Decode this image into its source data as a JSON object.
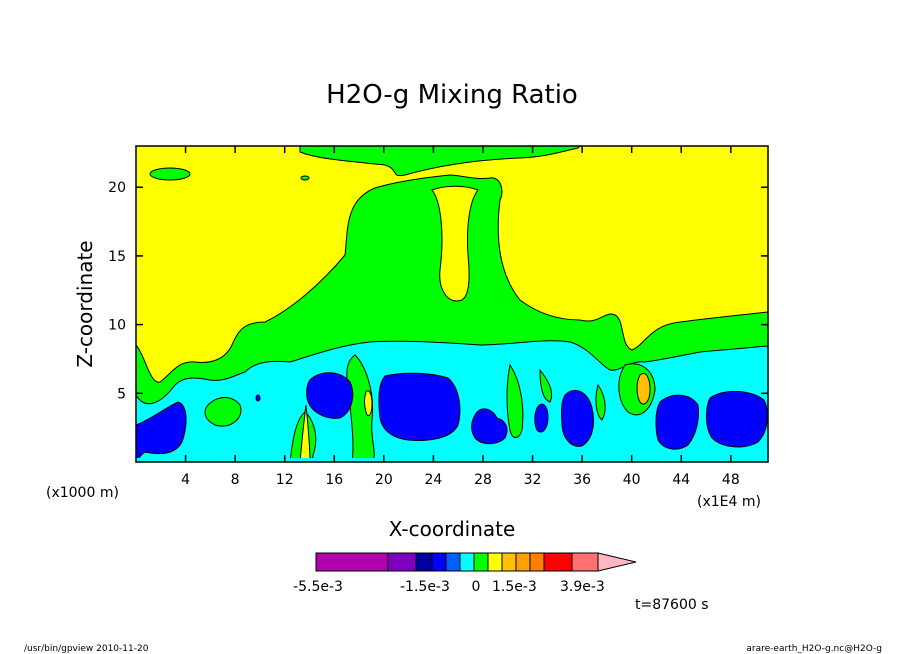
{
  "chart_data": {
    "type": "heatmap",
    "subtype": "filled-contour",
    "title": "H2O-g Mixing Ratio",
    "xlabel": "X-coordinate",
    "ylabel": "Z-coordinate",
    "x_unit": "(x1000 m)",
    "x_multiplier_label": "(x1E4 m)",
    "xlim": [
      0,
      51
    ],
    "ylim": [
      0,
      23
    ],
    "x_ticks": [
      4,
      8,
      12,
      16,
      20,
      24,
      28,
      32,
      36,
      40,
      44,
      48
    ],
    "y_ticks": [
      5,
      10,
      15,
      20
    ],
    "grid": false,
    "colorbar": {
      "labels": [
        "-5.5e-3",
        "-1.5e-3",
        "0",
        "1.5e-3",
        "3.9e-3"
      ],
      "colors": [
        "#b000b0",
        "#8000c0",
        "#0000a0",
        "#0000ff",
        "#0060ff",
        "#00ffff",
        "#00ff00",
        "#ffff00",
        "#ffc000",
        "#ffa000",
        "#ff8000",
        "#ff0000",
        "#ff7070",
        "#ffb8c0"
      ]
    },
    "field_levels": [
      {
        "name": "yellow",
        "color": "#ffff00"
      },
      {
        "name": "green",
        "color": "#00ff00"
      },
      {
        "name": "cyan",
        "color": "#00ffff"
      },
      {
        "name": "blue",
        "color": "#0000ff"
      },
      {
        "name": "orange",
        "color": "#ffc000"
      }
    ],
    "time_label": "t=87600 s"
  },
  "footer": {
    "left": "/usr/bin/gpview   2010-11-20",
    "right": "arare-earth_H2O-g.nc@H2O-g"
  }
}
